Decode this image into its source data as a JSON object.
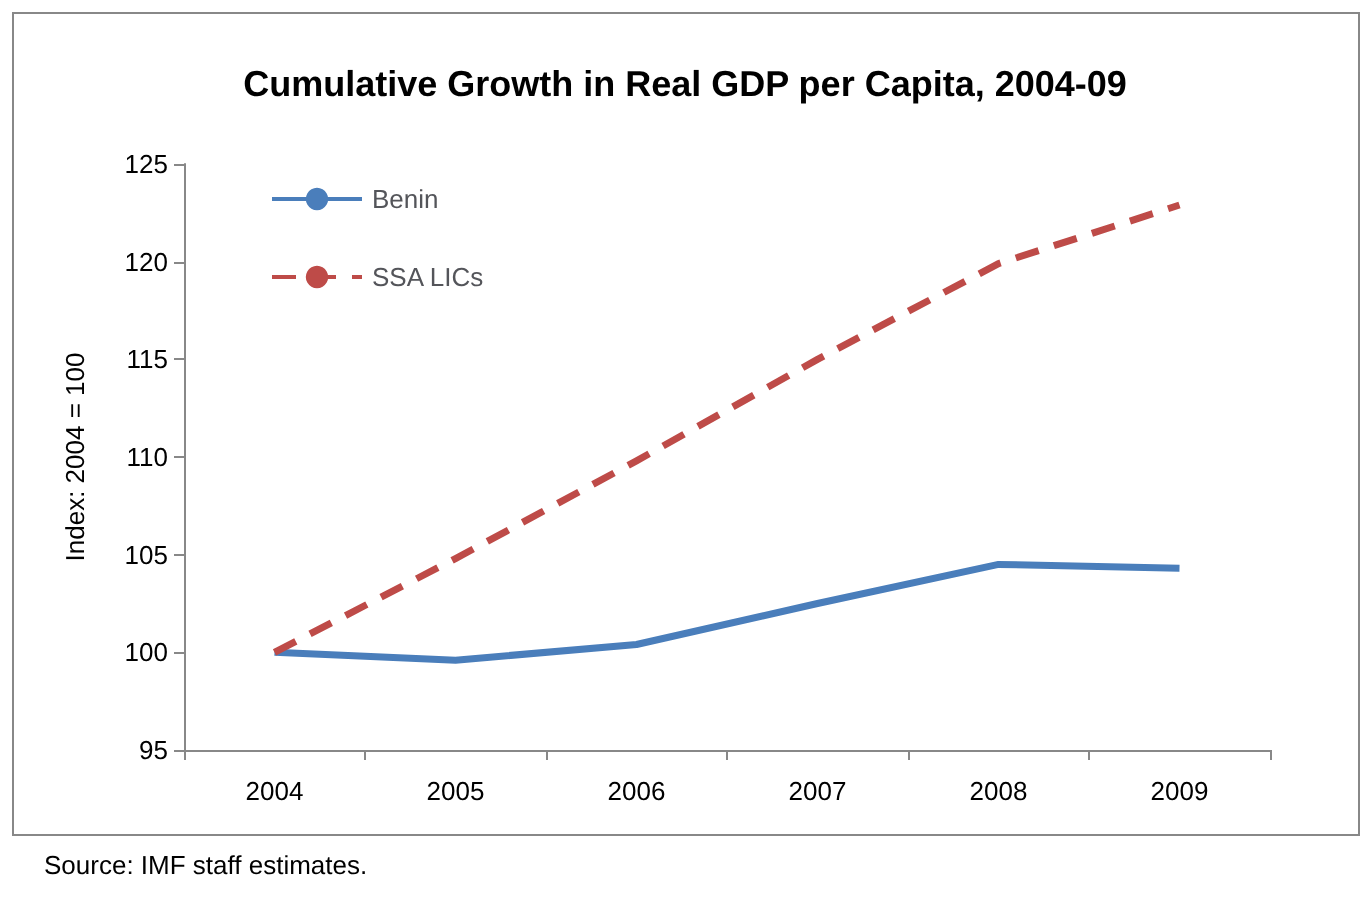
{
  "chart_data": {
    "type": "line",
    "title": "Cumulative Growth in Real GDP per Capita, 2004-09",
    "ylabel": "Index: 2004 = 100",
    "categories": [
      "2004",
      "2005",
      "2006",
      "2007",
      "2008",
      "2009"
    ],
    "series": [
      {
        "name": "Benin",
        "color": "#4a7ebb",
        "line_style": "solid",
        "values": [
          100,
          99.6,
          100.4,
          102.5,
          104.5,
          104.3
        ]
      },
      {
        "name": "SSA LICs",
        "color": "#be4b48",
        "line_style": "dashed",
        "values": [
          100,
          104.8,
          109.8,
          115,
          119.9,
          122.9
        ]
      }
    ],
    "ylim": [
      95,
      125
    ],
    "yticks": [
      95,
      100,
      105,
      110,
      115,
      120,
      125
    ],
    "grid": false,
    "legend": "top left",
    "marker": "none",
    "annotations": [
      "Source: IMF staff estimates."
    ]
  }
}
